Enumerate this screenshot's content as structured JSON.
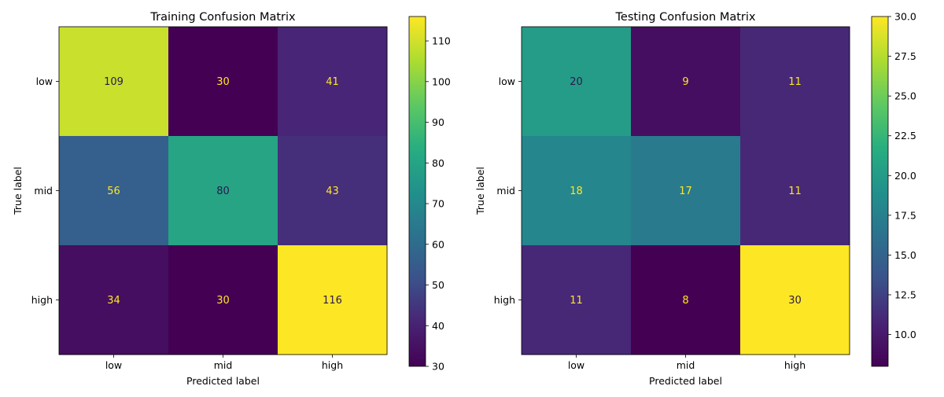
{
  "chart_data": [
    {
      "type": "heatmap",
      "title": "Training Confusion Matrix",
      "xlabel": "Predicted label",
      "ylabel": "True label",
      "x_categories": [
        "low",
        "mid",
        "high"
      ],
      "y_categories": [
        "low",
        "mid",
        "high"
      ],
      "values": [
        [
          109,
          30,
          41
        ],
        [
          56,
          80,
          43
        ],
        [
          34,
          30,
          116
        ]
      ],
      "colormap": "viridis",
      "vmin": 30,
      "vmax": 116,
      "colorbar_ticks": [
        30,
        40,
        50,
        60,
        70,
        80,
        90,
        100,
        110
      ],
      "colorbar_tick_labels": [
        "30",
        "40",
        "50",
        "60",
        "70",
        "80",
        "90",
        "100",
        "110"
      ],
      "grid": false
    },
    {
      "type": "heatmap",
      "title": "Testing Confusion Matrix",
      "xlabel": "Predicted label",
      "ylabel": "True label",
      "x_categories": [
        "low",
        "mid",
        "high"
      ],
      "y_categories": [
        "low",
        "mid",
        "high"
      ],
      "values": [
        [
          20,
          9,
          11
        ],
        [
          18,
          17,
          11
        ],
        [
          11,
          8,
          30
        ]
      ],
      "colormap": "viridis",
      "vmin": 8,
      "vmax": 30,
      "colorbar_ticks": [
        10,
        12.5,
        15,
        17.5,
        20,
        22.5,
        25,
        27.5,
        30
      ],
      "colorbar_tick_labels": [
        "10.0",
        "12.5",
        "15.0",
        "17.5",
        "20.0",
        "22.5",
        "25.0",
        "27.5",
        "30.0"
      ],
      "grid": false
    }
  ]
}
